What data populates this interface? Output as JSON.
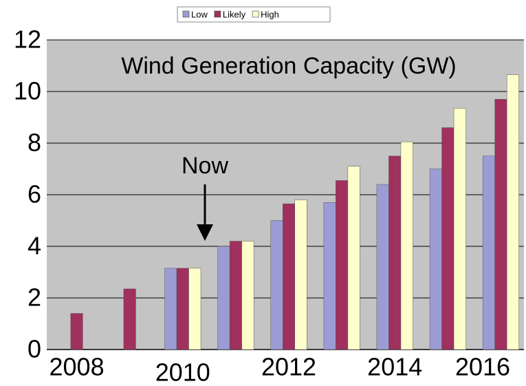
{
  "chart_data": {
    "type": "bar",
    "title": "Wind Generation Capacity (GW)",
    "annotation": "Now",
    "categories": [
      "2008",
      null,
      "2010",
      null,
      "2012",
      null,
      "2014",
      null,
      "2016"
    ],
    "series": [
      {
        "name": "Low",
        "color": "#9c9cd4",
        "values": [
          null,
          null,
          3.15,
          4.0,
          5.0,
          5.7,
          6.4,
          7.0,
          7.5
        ]
      },
      {
        "name": "Likely",
        "color": "#a0305e",
        "values": [
          1.4,
          2.35,
          3.15,
          4.2,
          5.65,
          6.55,
          7.5,
          8.6,
          9.7
        ]
      },
      {
        "name": "High",
        "color": "#ffffcc",
        "values": [
          null,
          null,
          3.15,
          4.2,
          5.8,
          7.1,
          8.05,
          9.35,
          10.65
        ]
      }
    ],
    "ylim": [
      0,
      12
    ],
    "yticks": [
      0,
      2,
      4,
      6,
      8,
      10,
      12
    ],
    "grid": true,
    "legend": "top"
  }
}
